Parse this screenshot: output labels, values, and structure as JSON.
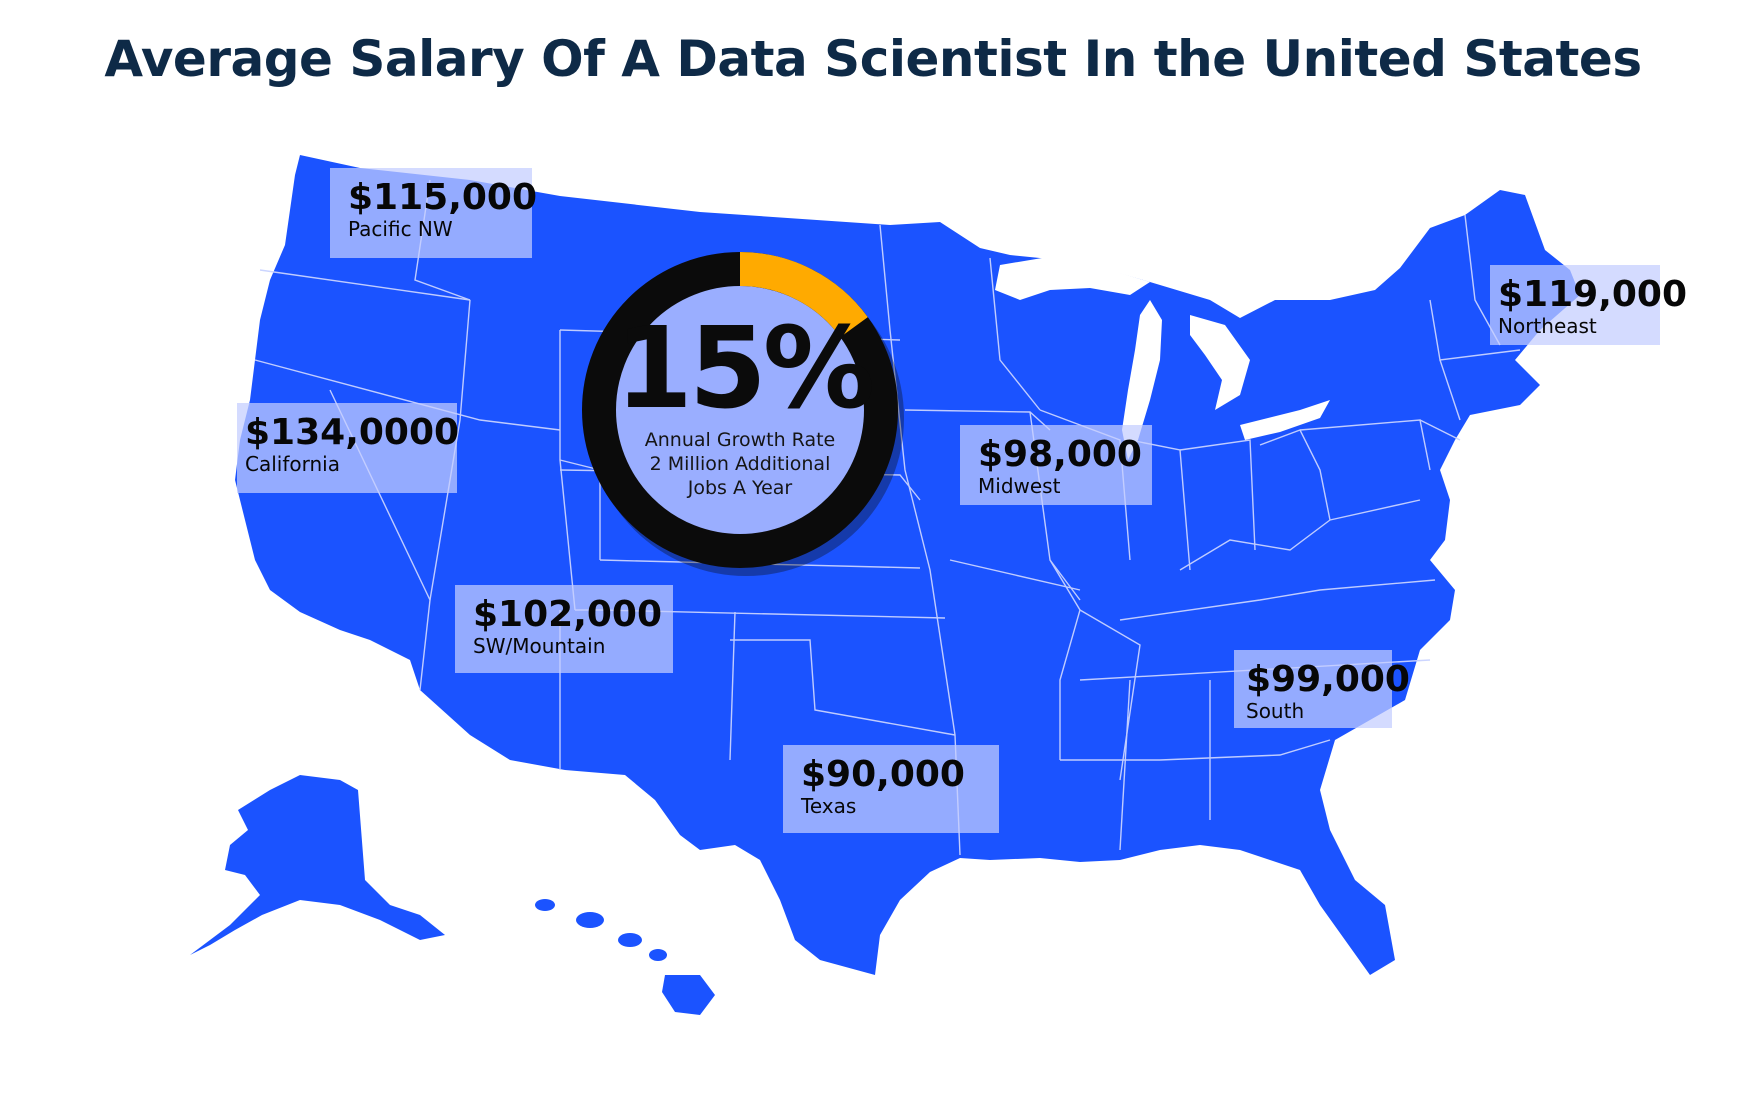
{
  "title": "Average Salary Of A Data Scientist In the United States",
  "colors": {
    "land": "#1b53ff",
    "border": "#c9d3ff",
    "label_box": "#c4cdff",
    "ring": "#0b0b0b",
    "ring_accent": "#ffaa00",
    "title": "#0e2a47"
  },
  "growth": {
    "percent_label": "15%",
    "fraction": 0.15,
    "lines": [
      "Annual Growth Rate",
      "2 Million Additional",
      "Jobs A Year"
    ]
  },
  "regions": [
    {
      "amount": "$115,000",
      "name": "Pacific NW"
    },
    {
      "amount": "$134,0000",
      "name": "California"
    },
    {
      "amount": "$102,000",
      "name": "SW/Mountain"
    },
    {
      "amount": "$90,000",
      "name": "Texas"
    },
    {
      "amount": "$98,000",
      "name": "Midwest"
    },
    {
      "amount": "$119,000",
      "name": "Northeast"
    },
    {
      "amount": "$99,000",
      "name": "South"
    }
  ]
}
